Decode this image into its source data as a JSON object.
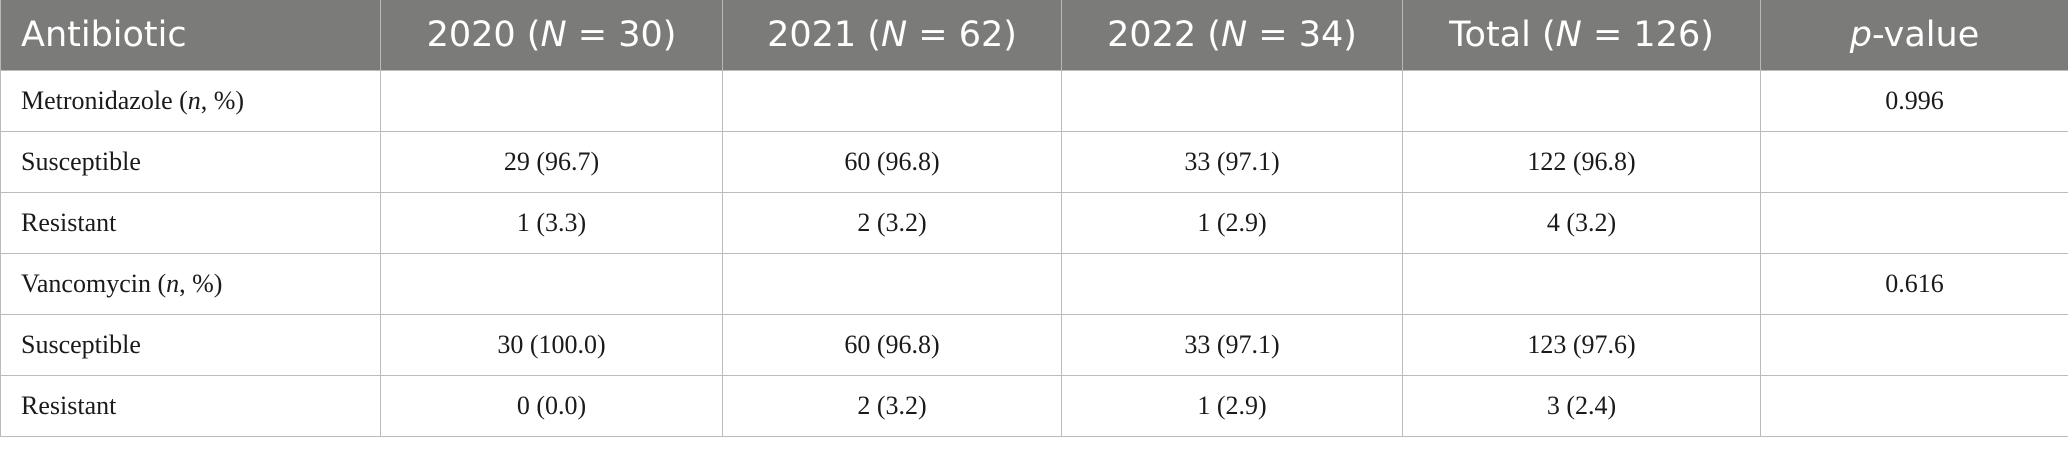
{
  "header": {
    "antibiotic": "Antibiotic",
    "col_2020": {
      "year": "2020 (",
      "n": "N",
      "rest": " = 30)"
    },
    "col_2021": {
      "year": "2021 (",
      "n": "N",
      "rest": " = 62)"
    },
    "col_2022": {
      "year": "2022 (",
      "n": "N",
      "rest": " = 34)"
    },
    "col_total": {
      "year": "Total (",
      "n": "N",
      "rest": " = 126)"
    },
    "pvalue": {
      "p": "p",
      "rest": "-value"
    }
  },
  "rows": [
    {
      "label": "Metronidazole (",
      "n": "n",
      "label_rest": ", %)",
      "y2020": "",
      "y2021": "",
      "y2022": "",
      "total": "",
      "p": "0.996"
    },
    {
      "label": "Susceptible",
      "y2020": "29 (96.7)",
      "y2021": "60 (96.8)",
      "y2022": "33 (97.1)",
      "total": "122 (96.8)",
      "p": ""
    },
    {
      "label": "Resistant",
      "y2020": "1 (3.3)",
      "y2021": "2 (3.2)",
      "y2022": "1 (2.9)",
      "total": "4 (3.2)",
      "p": ""
    },
    {
      "label": "Vancomycin (",
      "n": "n",
      "label_rest": ", %)",
      "y2020": "",
      "y2021": "",
      "y2022": "",
      "total": "",
      "p": "0.616"
    },
    {
      "label": "Susceptible",
      "y2020": "30 (100.0)",
      "y2021": "60 (96.8)",
      "y2022": "33 (97.1)",
      "total": "123 (97.6)",
      "p": ""
    },
    {
      "label": "Resistant",
      "y2020": "0 (0.0)",
      "y2021": "2 (3.2)",
      "y2022": "1 (2.9)",
      "total": "3 (2.4)",
      "p": ""
    }
  ]
}
